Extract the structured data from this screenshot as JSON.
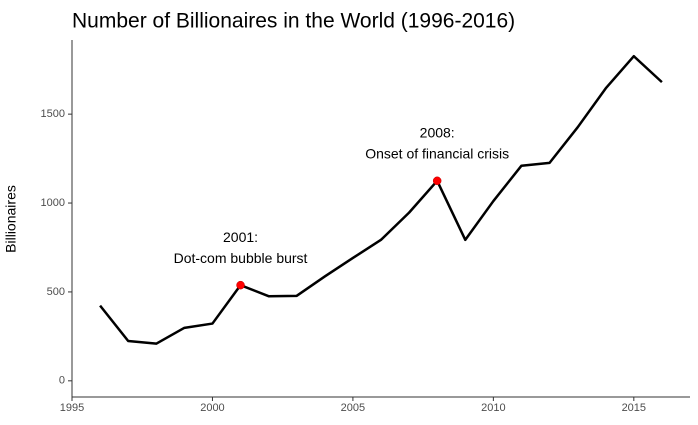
{
  "chart_data": {
    "type": "line",
    "title": "Number of Billionaires in the World (1996-2016)",
    "y_label": "Billionaires",
    "x": [
      1996,
      1997,
      1998,
      1999,
      2000,
      2001,
      2002,
      2003,
      2004,
      2005,
      2006,
      2007,
      2008,
      2009,
      2010,
      2011,
      2012,
      2013,
      2014,
      2015,
      2016
    ],
    "series": [
      {
        "name": "Billionaires",
        "color": "#000000",
        "values": [
          423,
          224,
          209,
          298,
          322,
          538,
          476,
          478,
          587,
          691,
          793,
          946,
          1125,
          793,
          1011,
          1210,
          1226,
          1426,
          1645,
          1826,
          1680
        ]
      }
    ],
    "annotations": [
      {
        "x": 2001,
        "text": [
          "2001:",
          "Dot-com bubble burst"
        ]
      },
      {
        "x": 2008,
        "text": [
          "2008:",
          "Onset of financial crisis"
        ]
      }
    ],
    "highlight_color": "#ff0000",
    "xlim": [
      1995,
      2017
    ],
    "xticks": [
      1995,
      2000,
      2005,
      2010,
      2015
    ],
    "ylim": [
      -91,
      1917
    ],
    "yticks": [
      0,
      500,
      1000,
      1500
    ],
    "grid": false
  }
}
